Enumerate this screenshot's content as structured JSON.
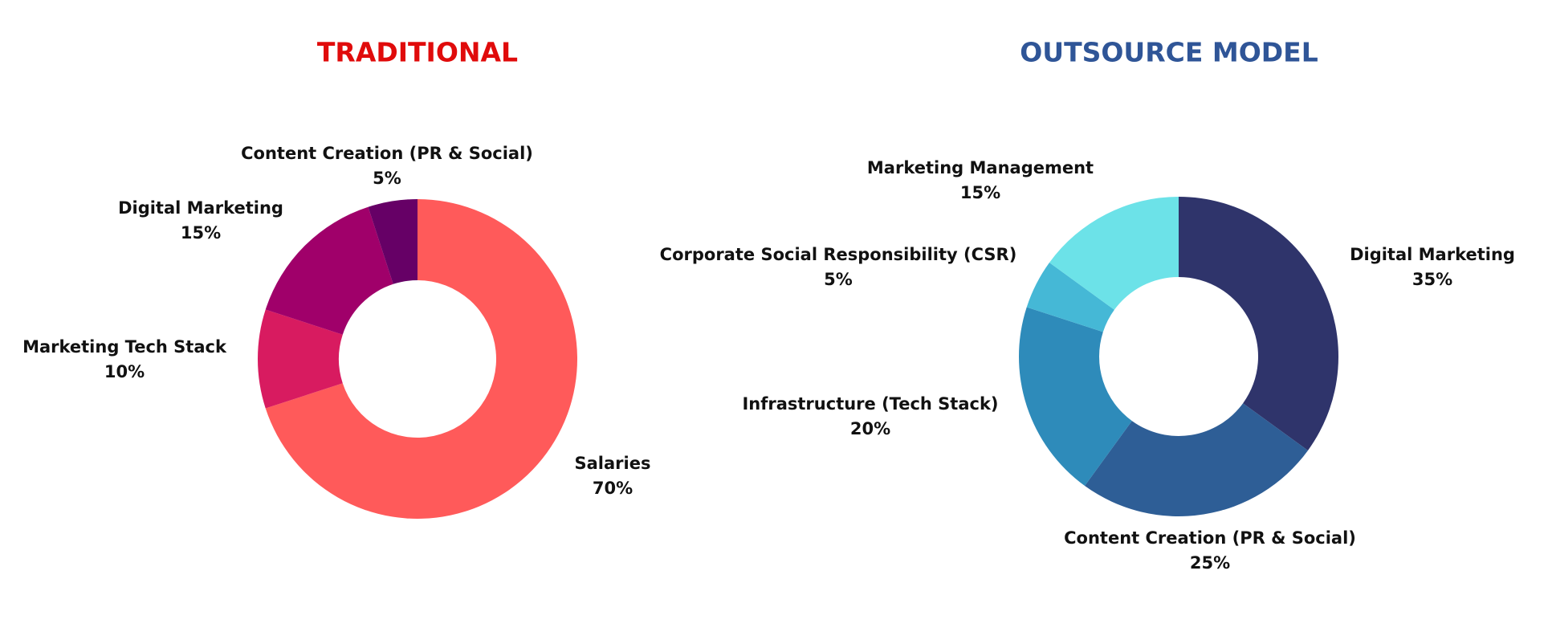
{
  "chart_data": [
    {
      "type": "pie",
      "title": "TRADITIONAL",
      "title_color": "#e00b0b",
      "categories": [
        "Salaries",
        "Marketing Tech Stack",
        "Digital Marketing",
        "Content Creation (PR & Social)"
      ],
      "values": [
        70,
        10,
        15,
        5
      ],
      "value_labels": [
        "70%",
        "10%",
        "15%",
        "5%"
      ],
      "colors": [
        "#ff5a5a",
        "#d81b60",
        "#a0006a",
        "#660066"
      ]
    },
    {
      "type": "pie",
      "title": "OUTSOURCE MODEL",
      "title_color": "#2f5597",
      "categories": [
        "Digital Marketing",
        "Content Creation (PR & Social)",
        "Infrastructure (Tech Stack)",
        "Corporate Social Responsibility (CSR)",
        "Marketing Management"
      ],
      "values": [
        35,
        25,
        20,
        5,
        15
      ],
      "value_labels": [
        "35%",
        "25%",
        "20%",
        "5%",
        "15%"
      ],
      "colors": [
        "#2f346b",
        "#2e5e96",
        "#2e8bba",
        "#45b8d6",
        "#6ce2e8"
      ]
    }
  ]
}
